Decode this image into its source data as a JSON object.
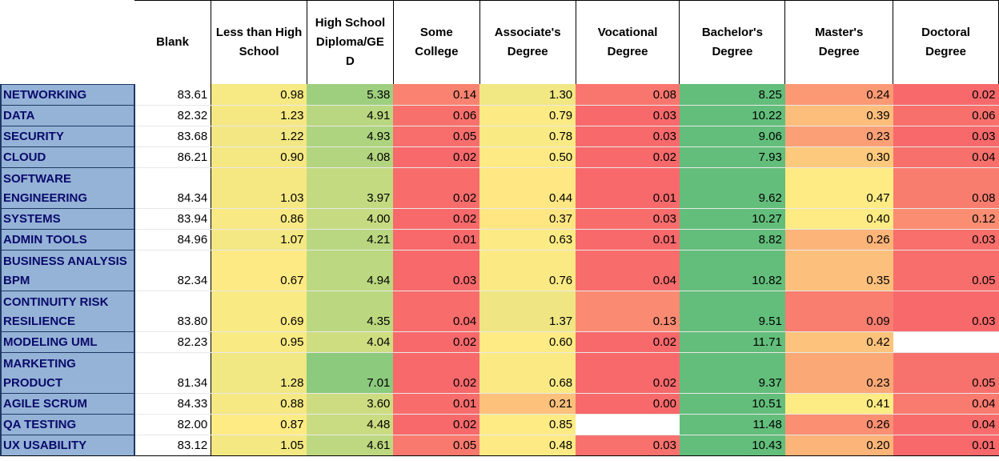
{
  "chart_data": {
    "type": "heatmap",
    "columns": [
      "Blank",
      "Less than High School",
      "High School Diploma/GED",
      "Some College",
      "Associate's Degree",
      "Vocational Degree",
      "Bachelor's Degree",
      "Master's Degree",
      "Doctoral Degree"
    ],
    "header_lines": [
      [
        "Blank"
      ],
      [
        "Less than High",
        "School"
      ],
      [
        "High School",
        "Diploma/GE",
        "D"
      ],
      [
        "Some",
        "College"
      ],
      [
        "Associate's",
        "Degree"
      ],
      [
        "Vocational",
        "Degree"
      ],
      [
        "Bachelor's",
        "Degree"
      ],
      [
        "Master's",
        "Degree"
      ],
      [
        "Doctoral",
        "Degree"
      ]
    ],
    "rows": [
      {
        "label": "NETWORKING",
        "values": [
          "83.61",
          "0.98",
          "5.38",
          "0.14",
          "1.30",
          "0.08",
          "8.25",
          "0.24",
          "0.02"
        ]
      },
      {
        "label": "DATA",
        "values": [
          "82.32",
          "1.23",
          "4.91",
          "0.06",
          "0.79",
          "0.03",
          "10.22",
          "0.39",
          "0.06"
        ]
      },
      {
        "label": "SECURITY",
        "values": [
          "83.68",
          "1.22",
          "4.93",
          "0.05",
          "0.78",
          "0.03",
          "9.06",
          "0.23",
          "0.03"
        ]
      },
      {
        "label": "CLOUD",
        "values": [
          "86.21",
          "0.90",
          "4.08",
          "0.02",
          "0.50",
          "0.02",
          "7.93",
          "0.30",
          "0.04"
        ]
      },
      {
        "label": "SOFTWARE ENGINEERING",
        "values": [
          "84.34",
          "1.03",
          "3.97",
          "0.02",
          "0.44",
          "0.01",
          "9.62",
          "0.47",
          "0.08"
        ]
      },
      {
        "label": "SYSTEMS",
        "values": [
          "83.94",
          "0.86",
          "4.00",
          "0.02",
          "0.37",
          "0.03",
          "10.27",
          "0.40",
          "0.12"
        ]
      },
      {
        "label": "ADMIN TOOLS",
        "values": [
          "84.96",
          "1.07",
          "4.21",
          "0.01",
          "0.63",
          "0.01",
          "8.82",
          "0.26",
          "0.03"
        ]
      },
      {
        "label": "BUSINESS ANALYSIS BPM",
        "values": [
          "82.34",
          "0.67",
          "4.94",
          "0.03",
          "0.76",
          "0.04",
          "10.82",
          "0.35",
          "0.05"
        ]
      },
      {
        "label": "CONTINUITY RISK RESILIENCE",
        "values": [
          "83.80",
          "0.69",
          "4.35",
          "0.04",
          "1.37",
          "0.13",
          "9.51",
          "0.09",
          "0.03"
        ]
      },
      {
        "label": "MODELING UML",
        "values": [
          "82.23",
          "0.95",
          "4.04",
          "0.02",
          "0.60",
          "0.02",
          "11.71",
          "0.42",
          null
        ]
      },
      {
        "label": "MARKETING PRODUCT",
        "values": [
          "81.34",
          "1.28",
          "7.01",
          "0.02",
          "0.68",
          "0.02",
          "9.37",
          "0.23",
          "0.05"
        ]
      },
      {
        "label": "AGILE SCRUM",
        "values": [
          "84.33",
          "0.88",
          "3.60",
          "0.01",
          "0.21",
          "0.00",
          "10.51",
          "0.41",
          "0.04"
        ]
      },
      {
        "label": "QA TESTING",
        "values": [
          "82.00",
          "0.87",
          "4.48",
          "0.02",
          "0.85",
          null,
          "11.48",
          "0.26",
          "0.04"
        ]
      },
      {
        "label": "UX USABILITY",
        "values": [
          "83.12",
          "1.05",
          "4.61",
          "0.05",
          "0.48",
          "0.03",
          "10.43",
          "0.20",
          "0.01"
        ]
      }
    ],
    "color_scale": {
      "low": "#f8696b",
      "mid": "#ffeb84",
      "high": "#63be7b",
      "scope": "per-row",
      "applies_to_columns": [
        1,
        2,
        3,
        4,
        5,
        6,
        7,
        8
      ]
    },
    "label_fill": "#95b3d7"
  }
}
